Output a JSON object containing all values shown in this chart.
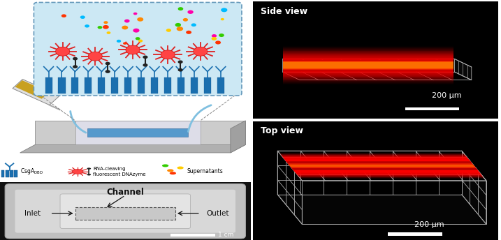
{
  "fig_width": 7.17,
  "fig_height": 3.44,
  "dpi": 100,
  "side_view_label": "Side view",
  "top_view_label": "Top view",
  "scalebar_label_side": "200 μm",
  "scalebar_label_top": "200 μm",
  "channel_label": "Channel",
  "inlet_label": "Inlet",
  "outlet_label": "Outlet",
  "scalebar_label_photo": "1 cm",
  "bg_white": "#ffffff",
  "bg_black": "#000000",
  "white": "#ffffff",
  "blue_fiber_color": "#1a6faf",
  "grid_color_side": "#aaaaaa",
  "grid_color_top": "#aaaaaa"
}
